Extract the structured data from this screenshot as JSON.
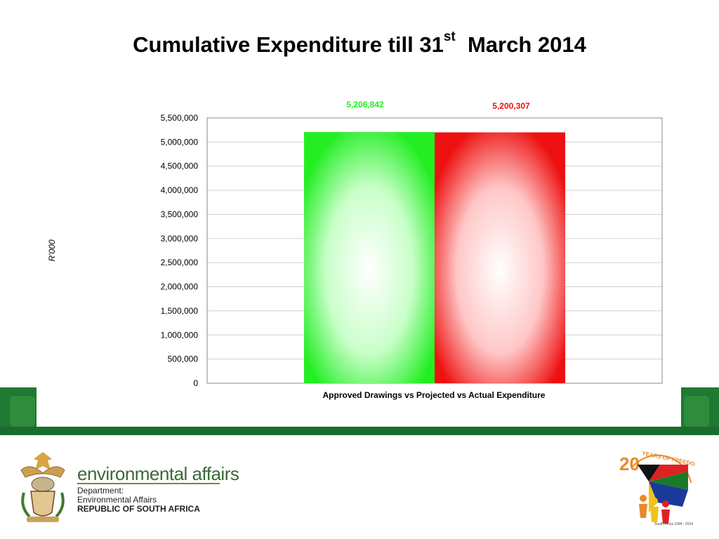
{
  "title": {
    "main": "Cumulative Expenditure till 31",
    "sup": "st",
    "tail": "March 2014"
  },
  "chart_data": {
    "type": "bar",
    "title": "Cumulative Expenditure till 31st March 2014",
    "xlabel": "Approved Drawings vs Projected vs Actual Expenditure",
    "ylabel": "R'000",
    "ylim": [
      0,
      5500000
    ],
    "yticks": [
      0,
      500000,
      1000000,
      1500000,
      2000000,
      2500000,
      3000000,
      3500000,
      4000000,
      4500000,
      5000000,
      5500000
    ],
    "grid": true,
    "series": [
      {
        "values": [
          5206842
        ],
        "label": "5,206,842",
        "color": "#22ee22"
      },
      {
        "values": [
          5200307
        ],
        "label": "5,200,307",
        "color": "#ee1111"
      }
    ]
  },
  "footer": {
    "dept_name": "environmental affairs",
    "dept_label": "Department:",
    "dept_sub": "Environmental Affairs",
    "dept_country": "REPUBLIC OF SOUTH AFRICA",
    "anniversary_text": "20 YEARS OF FREEDOM",
    "anniversary_sub": "South Africa 1994 - 2014"
  },
  "colors": {
    "band": "#1e7a32",
    "band_inner": "#2f8c3c"
  }
}
